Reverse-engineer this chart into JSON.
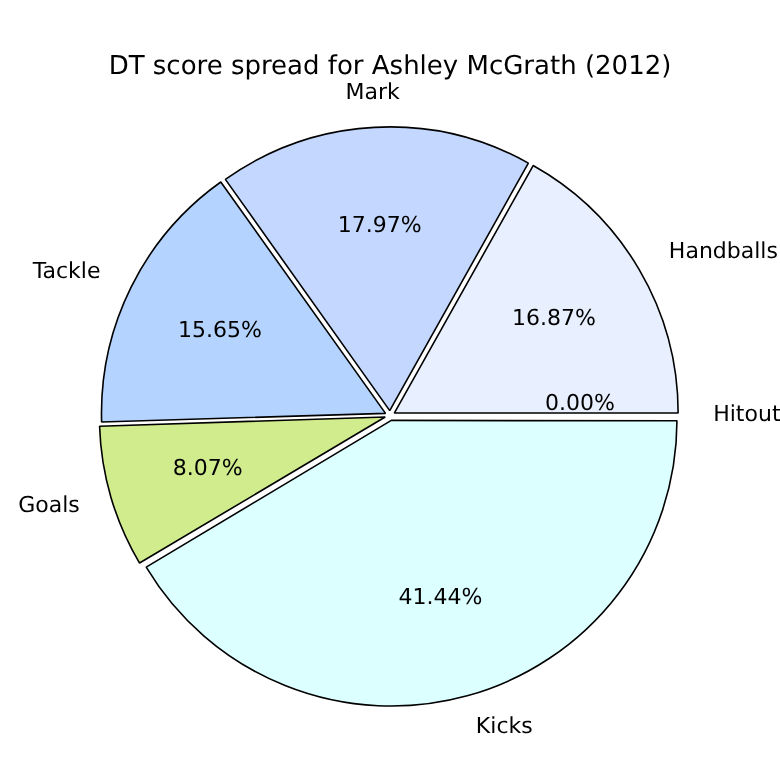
{
  "chart_data": {
    "type": "pie",
    "title": "DT score spread for Ashley McGrath (2012)",
    "categories": [
      "Hitout",
      "Handballs",
      "Mark",
      "Tackle",
      "Goals",
      "Kicks"
    ],
    "values": [
      0.0,
      16.87,
      17.97,
      15.65,
      8.07,
      41.44
    ],
    "colors": [
      "#f0f0ff",
      "#e8f0ff",
      "#c4d8ff",
      "#b4d4ff",
      "#d0ec8c",
      "#dcffff"
    ],
    "value_labels": [
      "0.00%",
      "16.87%",
      "17.97%",
      "15.65%",
      "8.07%",
      "41.44%"
    ],
    "legend": false
  }
}
